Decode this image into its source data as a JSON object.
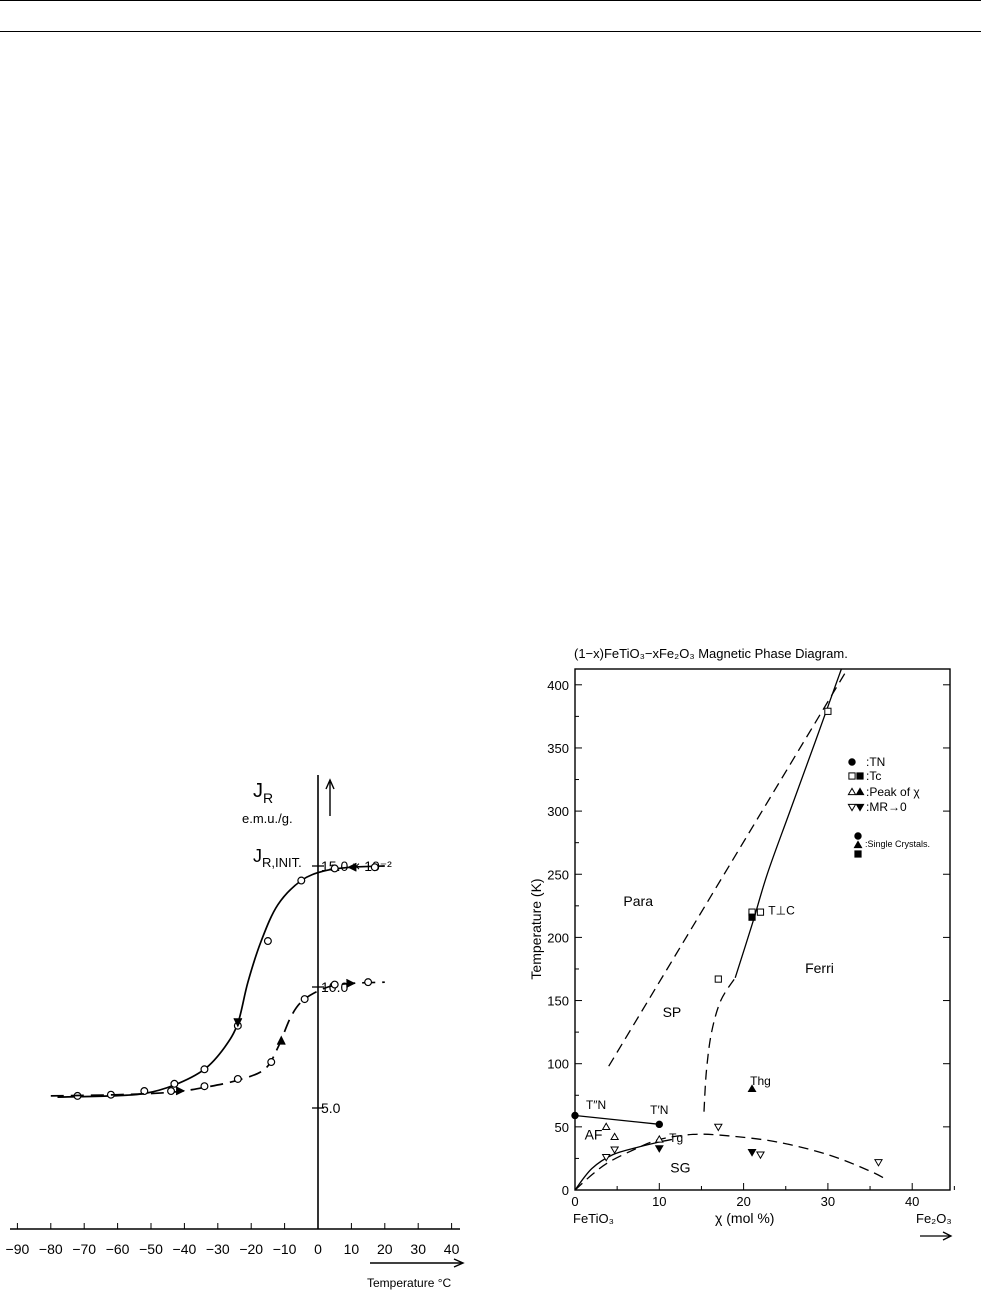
{
  "charts": {
    "left": {
      "chart_data": {
        "type": "line",
        "title": "",
        "ylabel": "J_R",
        "ylabel_sub": "R",
        "yunit": "e.m.u./g.",
        "xlabel": "Temperature °C",
        "xlim": [
          -95,
          45
        ],
        "ylim": [
          0,
          16.5
        ],
        "x_ticks": [
          -90,
          -80,
          -70,
          -60,
          -50,
          -40,
          -30,
          -20,
          -10,
          0,
          10,
          20,
          30,
          40
        ],
        "x_tick_labels": [
          "−90",
          "−80",
          "−70",
          "−60",
          "−50",
          "−40",
          "−30",
          "−20",
          "−10",
          "0",
          "10",
          "20",
          "30",
          "40"
        ],
        "y_ticks": [
          5.0,
          10.0,
          15.0
        ],
        "y_tick_labels": [
          "5.0",
          "10.0",
          "15.0 × 10⁻²"
        ],
        "y_annotation": "J_R,INIT.",
        "series": [
          {
            "style": "solid",
            "points": [
              [
                -72,
                5.5
              ],
              [
                -62,
                5.55
              ],
              [
                -52,
                5.7
              ],
              [
                -43,
                6.0
              ],
              [
                -34,
                6.6
              ],
              [
                -24,
                8.4
              ],
              [
                -15,
                11.9
              ],
              [
                -5,
                14.4
              ],
              [
                5,
                14.9
              ],
              [
                17,
                14.95
              ]
            ],
            "curve": [
              [
                -78,
                5.45
              ],
              [
                -62,
                5.5
              ],
              [
                -52,
                5.6
              ],
              [
                -43,
                5.95
              ],
              [
                -34,
                6.6
              ],
              [
                -28,
                7.5
              ],
              [
                -24,
                8.5
              ],
              [
                -21,
                10.2
              ],
              [
                -17,
                11.9
              ],
              [
                -12,
                13.4
              ],
              [
                -5,
                14.4
              ],
              [
                2,
                14.8
              ],
              [
                10,
                14.95
              ],
              [
                20,
                15.0
              ]
            ],
            "arrows": [
              {
                "x": -24,
                "direction": "down"
              },
              {
                "x": 10,
                "direction": "left"
              }
            ]
          },
          {
            "style": "dashed",
            "points": [
              [
                -44,
                5.7
              ],
              [
                -34,
                5.9
              ],
              [
                -24,
                6.2
              ],
              [
                -14,
                6.9
              ],
              [
                -4,
                9.5
              ],
              [
                5,
                10.1
              ],
              [
                15,
                10.2
              ]
            ],
            "curve": [
              [
                -80,
                5.5
              ],
              [
                -60,
                5.55
              ],
              [
                -44,
                5.65
              ],
              [
                -34,
                5.85
              ],
              [
                -24,
                6.15
              ],
              [
                -16,
                6.6
              ],
              [
                -12,
                7.5
              ],
              [
                -8,
                8.8
              ],
              [
                -4,
                9.5
              ],
              [
                3,
                10.0
              ],
              [
                10,
                10.15
              ],
              [
                20,
                10.2
              ]
            ],
            "arrows": [
              {
                "x": -41,
                "direction": "right"
              },
              {
                "x": -11,
                "direction": "up"
              },
              {
                "x": 10,
                "direction": "right"
              }
            ]
          }
        ]
      }
    },
    "right": {
      "chart_data": {
        "type": "scatter",
        "title": "(1−x)FeTiO₃−xFe₂O₃ Magnetic Phase Diagram.",
        "ylabel": "Temperature (K)",
        "xlabel": "χ (mol %)",
        "xlim": [
          0,
          45
        ],
        "ylim": [
          0,
          420
        ],
        "x_ticks": [
          0,
          10,
          20,
          30,
          40
        ],
        "y_ticks": [
          0,
          50,
          100,
          150,
          200,
          250,
          300,
          350,
          400
        ],
        "x_end_labels": [
          "FeTiO₃",
          "Fe₂O₃"
        ],
        "region_labels": [
          {
            "text": "Para",
            "x": 7.5,
            "y": 225
          },
          {
            "text": "SP",
            "x": 11.5,
            "y": 137
          },
          {
            "text": "Ferri",
            "x": 29,
            "y": 172
          },
          {
            "text": "AF",
            "x": 2.2,
            "y": 40
          },
          {
            "text": "SG",
            "x": 12.5,
            "y": 14
          }
        ],
        "point_labels": [
          {
            "text": "T″N",
            "x": 2.5,
            "y": 64
          },
          {
            "text": "T′N",
            "x": 10,
            "y": 60
          },
          {
            "text": "Tg",
            "x": 12,
            "y": 38
          },
          {
            "text": "T⊥C",
            "x": 24.5,
            "y": 218
          },
          {
            "text": "Thg",
            "x": 22,
            "y": 83
          }
        ],
        "legend": [
          {
            "marker": "filled-circle",
            "label": ":TN"
          },
          {
            "marker": "open-square",
            "label": ":Tc"
          },
          {
            "marker": "open-triangle",
            "label": ":Peak of χ"
          },
          {
            "marker": "open-inv-triangle",
            "label": ":MR→0"
          },
          {
            "marker": "filled-stack",
            "label": ":Single Crystals."
          }
        ],
        "legend_position": "right",
        "series": [
          {
            "name": "TN",
            "marker": "filled-circle",
            "points": [
              [
                0,
                59
              ],
              [
                10,
                52
              ]
            ]
          },
          {
            "name": "Tc",
            "marker": "open-square",
            "points": [
              [
                17,
                167
              ],
              [
                21,
                220
              ],
              [
                22,
                220
              ],
              [
                30,
                379
              ]
            ]
          },
          {
            "name": "Tc single",
            "marker": "filled-square",
            "points": [
              [
                21,
                216
              ]
            ]
          },
          {
            "name": "Peak of χ",
            "marker": "open-triangle",
            "points": [
              [
                3.7,
                50
              ],
              [
                4.7,
                42
              ],
              [
                10,
                40
              ]
            ]
          },
          {
            "name": "Peak single",
            "marker": "filled-triangle",
            "points": [
              [
                21,
                80
              ]
            ]
          },
          {
            "name": "MR→0",
            "marker": "open-inv-triangle",
            "points": [
              [
                3.7,
                26
              ],
              [
                4.7,
                32
              ],
              [
                17,
                50
              ],
              [
                22,
                28
              ],
              [
                36,
                22
              ]
            ]
          },
          {
            "name": "MR single",
            "marker": "filled-inv-triangle",
            "points": [
              [
                10,
                33
              ],
              [
                21,
                30
              ]
            ]
          }
        ],
        "lines": [
          {
            "style": "solid",
            "points": [
              [
                0,
                59
              ],
              [
                10,
                52
              ]
            ]
          },
          {
            "style": "solid",
            "points": [
              [
                0,
                0
              ],
              [
                2,
                17
              ],
              [
                4.5,
                28
              ],
              [
                7.5,
                34
              ],
              [
                10,
                38
              ],
              [
                11.5,
                40
              ]
            ]
          },
          {
            "style": "dashed",
            "points": [
              [
                0,
                0
              ],
              [
                2,
                12
              ],
              [
                4,
                22
              ],
              [
                7,
                32
              ],
              [
                10,
                40
              ],
              [
                14,
                44
              ],
              [
                18,
                43
              ],
              [
                24,
                38
              ],
              [
                30,
                28
              ],
              [
                35,
                15
              ],
              [
                37,
                8
              ]
            ]
          },
          {
            "style": "dashed",
            "points": [
              [
                4,
                98
              ],
              [
                33,
                420
              ]
            ]
          },
          {
            "style": "dashed",
            "points": [
              [
                15.3,
                62
              ],
              [
                15.6,
                95
              ],
              [
                16.2,
                125
              ],
              [
                17.3,
                150
              ],
              [
                19,
                168
              ]
            ]
          },
          {
            "style": "solid",
            "points": [
              [
                19,
                168
              ],
              [
                21,
                210
              ],
              [
                22.8,
                250
              ],
              [
                25.5,
                300
              ],
              [
                28.5,
                355
              ],
              [
                32,
                420
              ]
            ]
          }
        ]
      }
    }
  }
}
